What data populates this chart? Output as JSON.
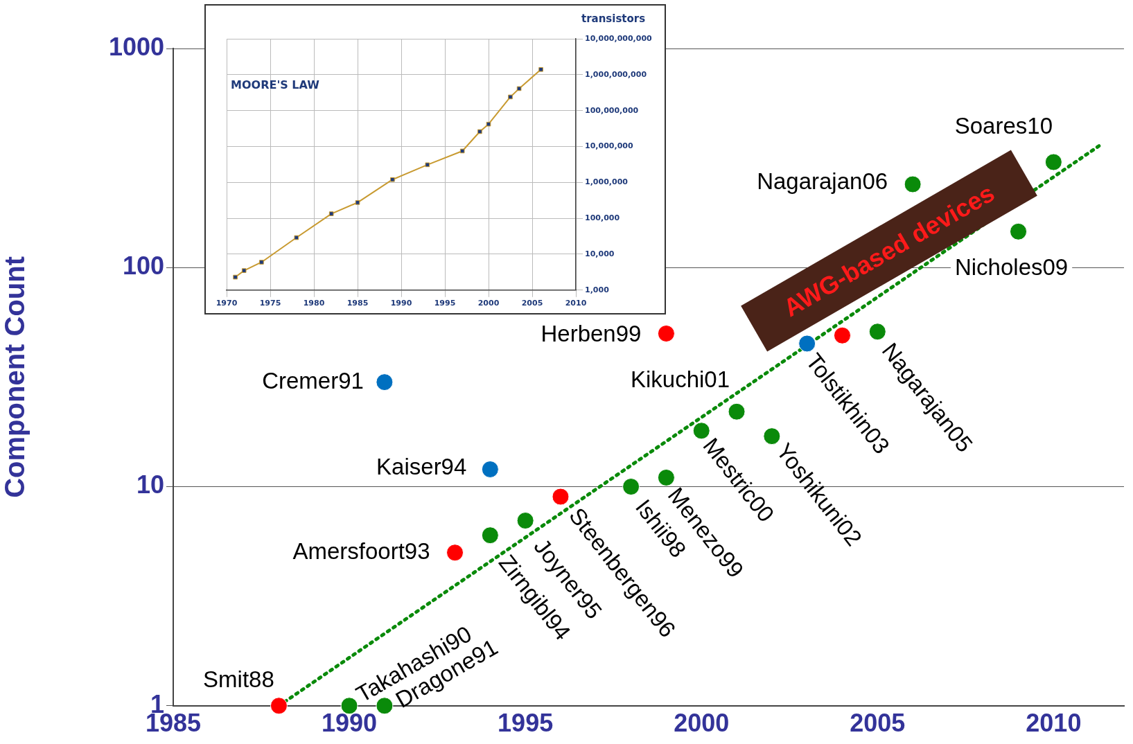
{
  "chart_data": [
    {
      "type": "scatter",
      "ylabel": "Component Count",
      "xlim": [
        1985,
        2012
      ],
      "xticks": [
        1985,
        1990,
        1995,
        2000,
        2005,
        2010
      ],
      "ylim": [
        1,
        1000
      ],
      "yticks": [
        1,
        10,
        100,
        1000
      ],
      "log": "y",
      "grid": "y",
      "marker": "circle",
      "series": [
        {
          "color": "#ff0000",
          "x": [
            1988,
            1993,
            1996,
            1999,
            2004
          ],
          "values": [
            1,
            5,
            9,
            50,
            49
          ]
        },
        {
          "color": "#0a8a0a",
          "x": [
            1990,
            1991,
            1994,
            1995,
            1998,
            1999,
            2000,
            2001,
            2002,
            2005,
            2006,
            2009,
            2010
          ],
          "values": [
            1,
            1,
            6,
            7,
            10,
            11,
            18,
            22,
            17,
            51,
            240,
            146,
            303
          ]
        },
        {
          "color": "#0070c0",
          "x": [
            1991,
            1994,
            2003
          ],
          "values": [
            30,
            12,
            45
          ]
        },
        {
          "type": "line",
          "color": "#0a8a0a",
          "marker": "none",
          "line_style": "dotted",
          "x": [
            1988,
            2011.3
          ],
          "values": [
            1,
            360
          ]
        }
      ],
      "annotations": [
        {
          "text": "Smit88",
          "x": 1988,
          "y": 1
        },
        {
          "text": "Takahashi90",
          "x": 1990,
          "y": 1
        },
        {
          "text": "Dragone91",
          "x": 1991,
          "y": 1
        },
        {
          "text": "Cremer91",
          "x": 1991,
          "y": 30
        },
        {
          "text": "Amersfoort93",
          "x": 1993,
          "y": 5
        },
        {
          "text": "Zirngibl94",
          "x": 1994,
          "y": 6
        },
        {
          "text": "Kaiser94",
          "x": 1994,
          "y": 12
        },
        {
          "text": "Joyner95",
          "x": 1995,
          "y": 7
        },
        {
          "text": "Steenbergen96",
          "x": 1996,
          "y": 9
        },
        {
          "text": "Ishii98",
          "x": 1998,
          "y": 10
        },
        {
          "text": "Menezo99",
          "x": 1999,
          "y": 11
        },
        {
          "text": "Herben99",
          "x": 1999,
          "y": 50
        },
        {
          "text": "Mestric00",
          "x": 2000,
          "y": 18
        },
        {
          "text": "Kikuchi01",
          "x": 2001,
          "y": 22
        },
        {
          "text": "Yoshikuni02",
          "x": 2002,
          "y": 17
        },
        {
          "text": "Tolstikhin03",
          "x": 2003,
          "y": 45
        },
        {
          "text": "Nagarajan05",
          "x": 2005,
          "y": 51
        },
        {
          "text": "Nagarajan06",
          "x": 2006,
          "y": 240
        },
        {
          "text": "Nicholes09",
          "x": 2009,
          "y": 146
        },
        {
          "text": "Soares10",
          "x": 2010,
          "y": 303
        },
        "AWG-based devices"
      ]
    },
    {
      "type": "line",
      "title": "MOORE'S LAW",
      "ylabel": "transistors",
      "xlim": [
        1970,
        2010
      ],
      "xticks": [
        1970,
        1975,
        1980,
        1985,
        1990,
        1995,
        2000,
        2005,
        2010
      ],
      "ylim": [
        1000,
        10000000000
      ],
      "yticks": [
        {
          "value": 1000,
          "label": "1,000"
        },
        {
          "value": 10000,
          "label": "10,000"
        },
        {
          "value": 100000,
          "label": "100,000"
        },
        {
          "value": 1000000,
          "label": "1,000,000"
        },
        {
          "value": 10000000,
          "label": "10,000,000"
        },
        {
          "value": 100000000,
          "label": "100,000,000"
        },
        {
          "value": 1000000000,
          "label": "1,000,000,000"
        },
        {
          "value": 10000000000,
          "label": "10,000,000,000"
        }
      ],
      "log": "y",
      "grid": true,
      "marker": "square",
      "series": [
        {
          "color": "#c89a30",
          "x": [
            1971,
            1972,
            1974,
            1978,
            1982,
            1985,
            1989,
            1993,
            1997,
            1999,
            2000,
            2002.5,
            2003.5,
            2006
          ],
          "values": [
            2300,
            3500,
            6000,
            29000,
            134000,
            275000,
            1200000,
            3100000,
            7500000,
            26000000,
            42000000,
            240000000,
            410000000,
            1400000000
          ]
        }
      ]
    }
  ]
}
